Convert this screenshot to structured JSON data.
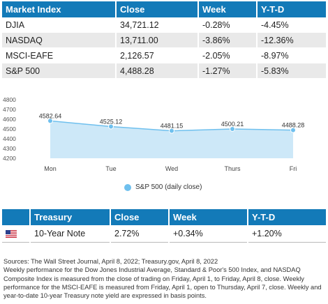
{
  "market_table": {
    "headers": [
      "Market Index",
      "Close",
      "Week",
      "Y-T-D"
    ],
    "rows": [
      [
        "DJIA",
        "34,721.12",
        "-0.28%",
        "-4.45%"
      ],
      [
        "NASDAQ",
        "13,711.00",
        "-3.86%",
        "-12.36%"
      ],
      [
        "MSCI-EAFE",
        "2,126.57",
        "-2.05%",
        "-8.97%"
      ],
      [
        "S&P 500",
        "4,488.28",
        "-1.27%",
        "-5.83%"
      ]
    ]
  },
  "chart_data": {
    "type": "area",
    "categories": [
      "Mon",
      "Tue",
      "Wed",
      "Thurs",
      "Fri"
    ],
    "series": [
      {
        "name": "S&P 500 (daily close)",
        "values": [
          4582.64,
          4525.12,
          4481.15,
          4500.21,
          4488.28
        ]
      }
    ],
    "data_labels": [
      "4582.64",
      "4525.12",
      "4481.15",
      "4500.21",
      "4488.28"
    ],
    "yticks": [
      "4800",
      "4700",
      "4600",
      "4500",
      "4400",
      "4300",
      "4200"
    ],
    "ylim": [
      4200,
      4800
    ],
    "legend_position": "bottom",
    "grid": false,
    "colors": {
      "fill": "#cde8f8",
      "line": "#6fc0ee",
      "marker": "#6fc0ee"
    }
  },
  "treasury_table": {
    "headers": [
      "Treasury",
      "Close",
      "Week",
      "Y-T-D"
    ],
    "rows": [
      {
        "flag": "us-flag-icon",
        "name": "10-Year Note",
        "close": "2.72%",
        "week": "+0.34%",
        "ytd": "+1.20%"
      }
    ]
  },
  "sources": "Sources: The Wall Street Journal, April 8, 2022; Treasury.gov, April 8, 2022\nWeekly performance for the Dow Jones Industrial Average, Standard & Poor's 500 Index, and NASDAQ Composite Index is measured from the close of trading on Friday, April 1, to Friday, April 8, close. Weekly performance for the MSCI-EAFE is measured from Friday, April 1, open to Thursday, April 7, close. Weekly and year-to-date 10-year Treasury note yield are expressed in basis points.",
  "colors": {
    "header_bg": "#137ab8",
    "stripe": "#e9e9e9"
  }
}
